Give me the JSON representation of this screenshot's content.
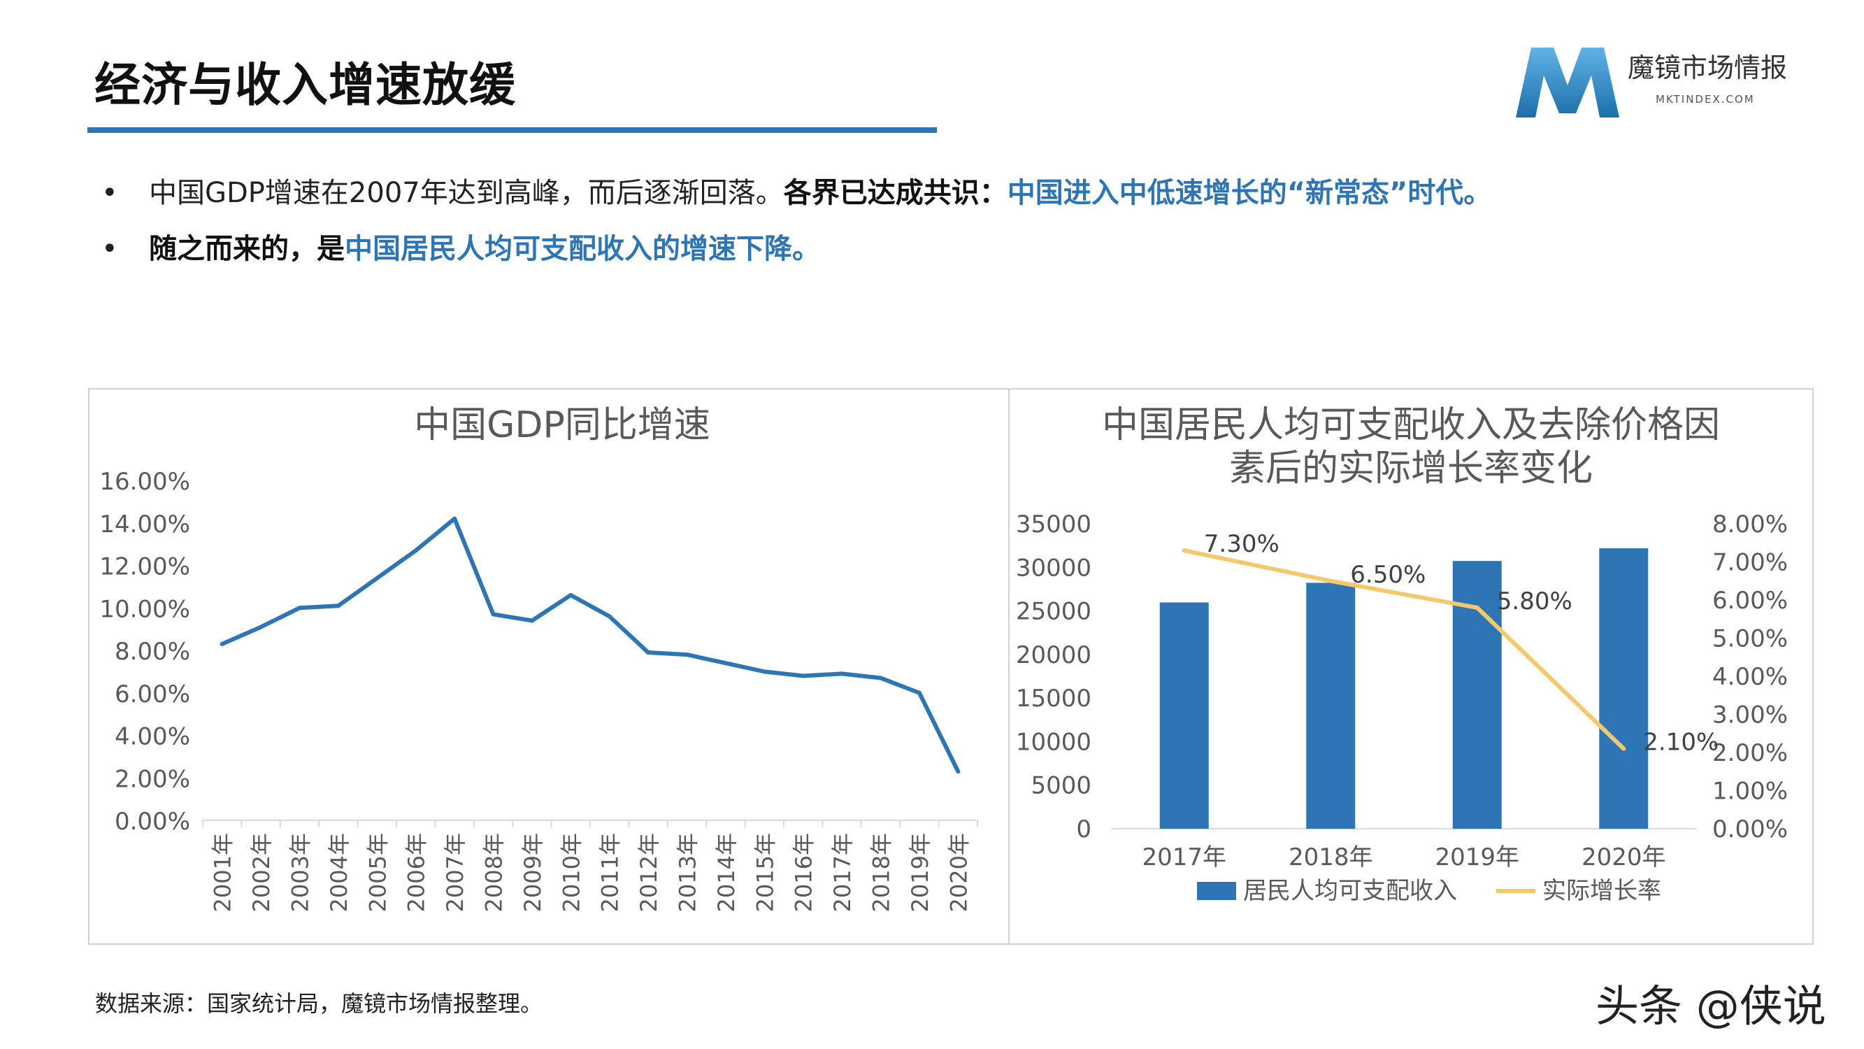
{
  "header": {
    "title": "经济与收入增速放缓",
    "logo_name": "魔镜市场情报",
    "logo_sub": "MKTINDEX.COM"
  },
  "bullets": [
    {
      "dot": "•",
      "plain": "中国GDP增速在2007年达到高峰，而后逐渐回落。",
      "bold": "各界已达成共识：",
      "highlight": "中国进入中低速增长的“新常态”时代。"
    },
    {
      "dot": "•",
      "bold": "随之而来的，是",
      "highlight": "中国居民人均可支配收入的增速下降。"
    }
  ],
  "colors": {
    "accent": "#2e75b6",
    "bar": "#2e75b6",
    "line_gdp": "#2e75b6",
    "line_growth": "#f5c96b",
    "axis_text": "#595959",
    "title_text": "#595959"
  },
  "chart_data": [
    {
      "type": "line",
      "title": "中国GDP同比增速",
      "x": [
        "2001年",
        "2002年",
        "2003年",
        "2004年",
        "2005年",
        "2006年",
        "2007年",
        "2008年",
        "2009年",
        "2010年",
        "2011年",
        "2012年",
        "2013年",
        "2014年",
        "2015年",
        "2016年",
        "2017年",
        "2018年",
        "2019年",
        "2020年"
      ],
      "series": [
        {
          "values": [
            8.3,
            9.1,
            10.0,
            10.1,
            11.4,
            12.7,
            14.2,
            9.7,
            9.4,
            10.6,
            9.6,
            7.9,
            7.8,
            7.4,
            7.0,
            6.8,
            6.9,
            6.7,
            6.0,
            2.3
          ]
        }
      ],
      "ylim": [
        0,
        16
      ],
      "yticks": [
        "0.00%",
        "2.00%",
        "4.00%",
        "6.00%",
        "8.00%",
        "10.00%",
        "12.00%",
        "14.00%",
        "16.00%"
      ],
      "grid": false
    },
    {
      "type": "bar",
      "title": "中国居民人均可支配收入及去除价格因素后的实际增长率变化",
      "title_lines": [
        "中国居民人均可支配收入及去除价格因",
        "素后的实际增长率变化"
      ],
      "categories": [
        "2017年",
        "2018年",
        "2019年",
        "2020年"
      ],
      "series": [
        {
          "name": "居民人均可支配收入",
          "type": "bar",
          "axis": "left",
          "values": [
            25974,
            28228,
            30733,
            32189
          ]
        },
        {
          "name": "实际增长率",
          "type": "line",
          "axis": "right",
          "values": [
            7.3,
            6.5,
            5.8,
            2.1
          ],
          "labels": [
            "7.30%",
            "6.50%",
            "5.80%",
            "2.10%"
          ]
        }
      ],
      "ylim_left": [
        0,
        35000
      ],
      "yticks_left": [
        "0",
        "5000",
        "10000",
        "15000",
        "20000",
        "25000",
        "30000",
        "35000"
      ],
      "ylim_right": [
        0,
        8
      ],
      "yticks_right": [
        "0.00%",
        "1.00%",
        "2.00%",
        "3.00%",
        "4.00%",
        "5.00%",
        "6.00%",
        "7.00%",
        "8.00%"
      ],
      "legend_position": "bottom",
      "grid": false
    }
  ],
  "footer": {
    "source": "数据来源：国家统计局，魔镜市场情报整理。",
    "watermark": "头条 @侠说"
  }
}
